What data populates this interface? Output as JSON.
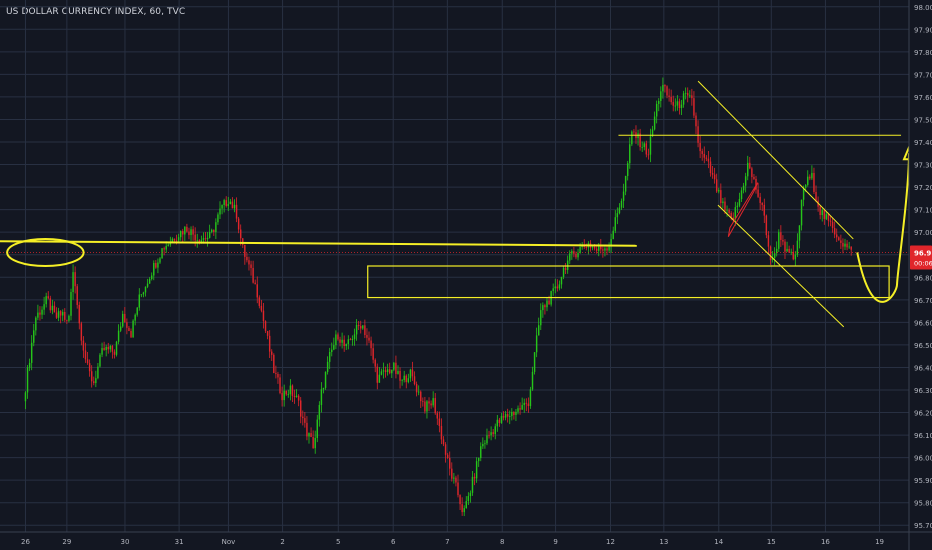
{
  "header": {
    "title": "US DOLLAR CURRENCY INDEX, 60, TVC"
  },
  "price_tag": {
    "value": "96.91",
    "countdown": "00:06"
  },
  "colors": {
    "background": "#131722",
    "grid": "#283042",
    "up": "#26c41a",
    "down": "#e0262b",
    "annotation": "#f5ef26",
    "axis_text": "#b2b5be",
    "price_tag": "#e0262b"
  },
  "chart_data": {
    "type": "candlestick",
    "title": "US DOLLAR CURRENCY INDEX, 60, TVC",
    "xlabel": "",
    "ylabel": "",
    "x_ticks": [
      {
        "label": "26",
        "x": 0
      },
      {
        "label": "29",
        "x": 5.2
      },
      {
        "label": "30",
        "x": 12.5
      },
      {
        "label": "31",
        "x": 19.3
      },
      {
        "label": "Nov",
        "x": 25.5
      },
      {
        "label": "2",
        "x": 32.3
      },
      {
        "label": "5",
        "x": 39.3
      },
      {
        "label": "6",
        "x": 46.2
      },
      {
        "label": "7",
        "x": 53.0
      },
      {
        "label": "8",
        "x": 59.9
      },
      {
        "label": "9",
        "x": 66.6
      },
      {
        "label": "12",
        "x": 73.5
      },
      {
        "label": "13",
        "x": 80.2
      },
      {
        "label": "14",
        "x": 87.1
      },
      {
        "label": "15",
        "x": 93.7
      },
      {
        "label": "16",
        "x": 100.5
      },
      {
        "label": "19",
        "x": 107.3
      }
    ],
    "y_ticks": [
      98.0,
      97.9,
      97.8,
      97.7,
      97.6,
      97.5,
      97.4,
      97.3,
      97.2,
      97.1,
      97.0,
      96.9,
      96.8,
      96.7,
      96.6,
      96.5,
      96.4,
      96.3,
      96.2,
      96.1,
      96.0,
      95.9,
      95.8,
      95.7
    ],
    "ylim": [
      95.67,
      98.03
    ],
    "xlim": [
      -3.2,
      111
    ],
    "grid": true,
    "last_price": 96.91,
    "series_path": [
      [
        0,
        96.25
      ],
      [
        1.5,
        96.62
      ],
      [
        3,
        96.7
      ],
      [
        4,
        96.62
      ],
      [
        5,
        96.64
      ],
      [
        5.6,
        96.58
      ],
      [
        6.3,
        96.85
      ],
      [
        7,
        96.6
      ],
      [
        8,
        96.4
      ],
      [
        8.8,
        96.33
      ],
      [
        10,
        96.48
      ],
      [
        11.5,
        96.47
      ],
      [
        12.5,
        96.64
      ],
      [
        13.5,
        96.55
      ],
      [
        14.5,
        96.7
      ],
      [
        16,
        96.82
      ],
      [
        17.5,
        96.93
      ],
      [
        19,
        96.98
      ],
      [
        20.5,
        97.02
      ],
      [
        22,
        96.97
      ],
      [
        23.5,
        96.98
      ],
      [
        24.8,
        97.1
      ],
      [
        25.8,
        97.15
      ],
      [
        26.8,
        97.08
      ],
      [
        27.5,
        96.93
      ],
      [
        28.5,
        96.83
      ],
      [
        29.5,
        96.72
      ],
      [
        30.5,
        96.55
      ],
      [
        31.5,
        96.38
      ],
      [
        32.5,
        96.28
      ],
      [
        33.5,
        96.3
      ],
      [
        34.5,
        96.25
      ],
      [
        35.5,
        96.12
      ],
      [
        36.5,
        96.05
      ],
      [
        37.5,
        96.3
      ],
      [
        38.5,
        96.45
      ],
      [
        39.5,
        96.55
      ],
      [
        40.5,
        96.48
      ],
      [
        41.5,
        96.55
      ],
      [
        42.5,
        96.6
      ],
      [
        43.5,
        96.5
      ],
      [
        44.5,
        96.35
      ],
      [
        45.5,
        96.38
      ],
      [
        46.5,
        96.4
      ],
      [
        47.5,
        96.33
      ],
      [
        48.5,
        96.38
      ],
      [
        49.5,
        96.3
      ],
      [
        50.5,
        96.22
      ],
      [
        51.5,
        96.25
      ],
      [
        52.5,
        96.1
      ],
      [
        53.5,
        95.95
      ],
      [
        54.5,
        95.85
      ],
      [
        55.3,
        95.75
      ],
      [
        56.5,
        95.9
      ],
      [
        57.5,
        96.05
      ],
      [
        58.5,
        96.1
      ],
      [
        59.5,
        96.15
      ],
      [
        60.5,
        96.18
      ],
      [
        61.5,
        96.2
      ],
      [
        62.5,
        96.22
      ],
      [
        63.5,
        96.25
      ],
      [
        64,
        96.4
      ],
      [
        65,
        96.65
      ],
      [
        66,
        96.7
      ],
      [
        67,
        96.75
      ],
      [
        68,
        96.85
      ],
      [
        69,
        96.9
      ],
      [
        70,
        96.93
      ],
      [
        71,
        96.95
      ],
      [
        72,
        96.92
      ],
      [
        73.5,
        96.94
      ],
      [
        74,
        97.0
      ],
      [
        75.5,
        97.2
      ],
      [
        76.5,
        97.45
      ],
      [
        77.5,
        97.4
      ],
      [
        78.5,
        97.35
      ],
      [
        79.5,
        97.55
      ],
      [
        80.2,
        97.65
      ],
      [
        81,
        97.6
      ],
      [
        82,
        97.55
      ],
      [
        83,
        97.6
      ],
      [
        84,
        97.58
      ],
      [
        85,
        97.35
      ],
      [
        86,
        97.3
      ],
      [
        87,
        97.2
      ],
      [
        88,
        97.1
      ],
      [
        89,
        97.05
      ],
      [
        90,
        97.15
      ],
      [
        91,
        97.3
      ],
      [
        92,
        97.2
      ],
      [
        93,
        97.08
      ],
      [
        94,
        96.85
      ],
      [
        95,
        97.0
      ],
      [
        96,
        96.9
      ],
      [
        97,
        96.88
      ],
      [
        98,
        97.2
      ],
      [
        99,
        97.25
      ],
      [
        100,
        97.1
      ],
      [
        101,
        97.05
      ],
      [
        102,
        97.0
      ],
      [
        103,
        96.95
      ],
      [
        104,
        96.91
      ]
    ]
  },
  "annotations": {
    "horizontal_lines": [
      {
        "from": [
          -3.2,
          96.96
        ],
        "to": [
          76.8,
          96.94
        ],
        "color": "#f5ef26",
        "width": 2
      },
      {
        "from": [
          74.5,
          97.43
        ],
        "to": [
          110,
          97.43
        ],
        "color": "#f5ef26",
        "width": 1
      }
    ],
    "rectangles": [
      {
        "x1": 43,
        "x2": 108.5,
        "y_top": 96.85,
        "y_bottom": 96.71,
        "color": "#f5ef26"
      }
    ],
    "channel_lines": [
      {
        "from": [
          84.5,
          97.67
        ],
        "to": [
          104,
          96.97
        ],
        "color": "#f5ef26"
      },
      {
        "from": [
          87,
          97.12
        ],
        "to": [
          102.8,
          96.58
        ],
        "color": "#f5ef26"
      }
    ],
    "small_flag": [
      [
        88.5,
        97.02
      ],
      [
        92,
        97.22
      ],
      [
        91.5,
        97.18
      ],
      [
        88.3,
        96.98
      ]
    ],
    "ellipse": {
      "cx": 2.5,
      "cy": 96.91,
      "rx": 4.8,
      "ry": 0.06
    },
    "projection_curve": [
      [
        104.5,
        96.91
      ],
      [
        106.5,
        96.69
      ],
      [
        109.5,
        96.77
      ],
      [
        111,
        97.35
      ]
    ]
  }
}
